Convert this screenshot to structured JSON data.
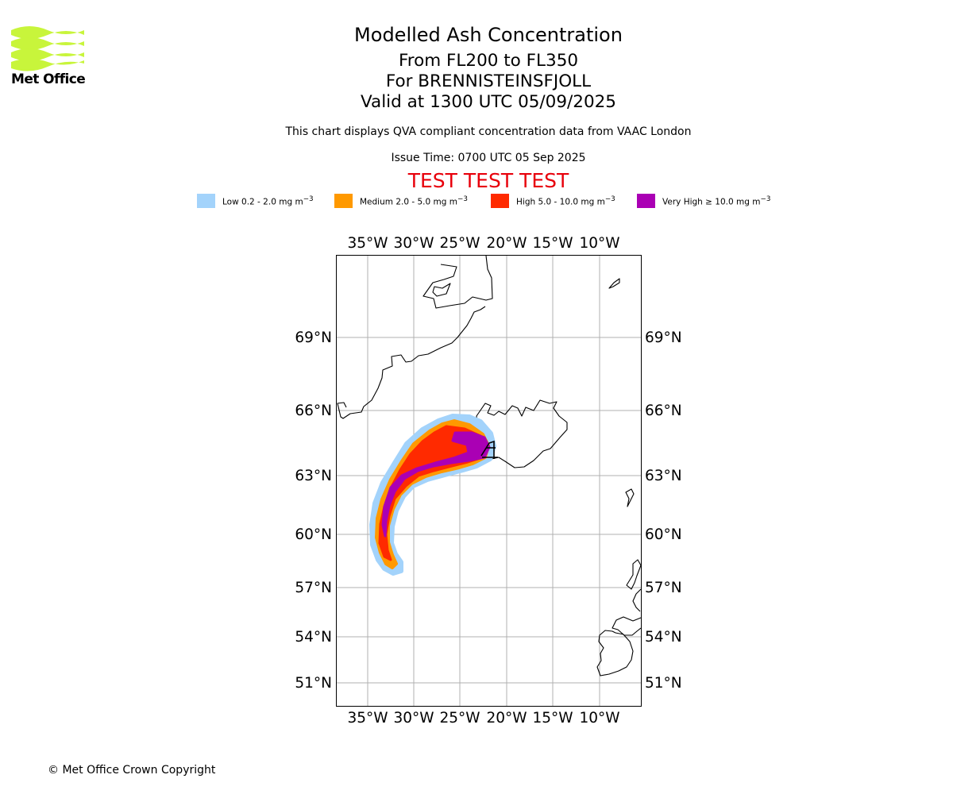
{
  "header": {
    "title": "Modelled Ash Concentration",
    "flight_levels": "From FL200 to FL350",
    "volcano": "For BRENNISTEINSFJOLL",
    "valid_time": "Valid at 1300 UTC 05/09/2025",
    "description": "This chart displays QVA compliant concentration data from VAAC London",
    "issue_time": "Issue Time: 0700 UTC 05 Sep 2025",
    "test_banner": "TEST TEST TEST"
  },
  "logo": {
    "text": "Met Office",
    "color": "#c8f53b"
  },
  "legend": [
    {
      "label": "Low 0.2 - 2.0 mg m",
      "exp": "−3",
      "color": "#a3d3fb"
    },
    {
      "label": "Medium 2.0 - 5.0 mg m",
      "exp": "−3",
      "color": "#ff9900"
    },
    {
      "label": "High 5.0 - 10.0 mg m",
      "exp": "−3",
      "color": "#ff2a00"
    },
    {
      "label": "Very High  ≥  10.0 mg m",
      "exp": "−3",
      "color": "#aa00b4"
    }
  ],
  "map": {
    "lon_ticks": [
      "35°W",
      "30°W",
      "25°W",
      "20°W",
      "15°W",
      "10°W"
    ],
    "lat_ticks": [
      "69°N",
      "66°N",
      "63°N",
      "60°N",
      "57°N",
      "54°N",
      "51°N"
    ],
    "gridline_color": "#b0b0b0"
  },
  "footer": {
    "copyright": "© Met Office Crown Copyright"
  }
}
